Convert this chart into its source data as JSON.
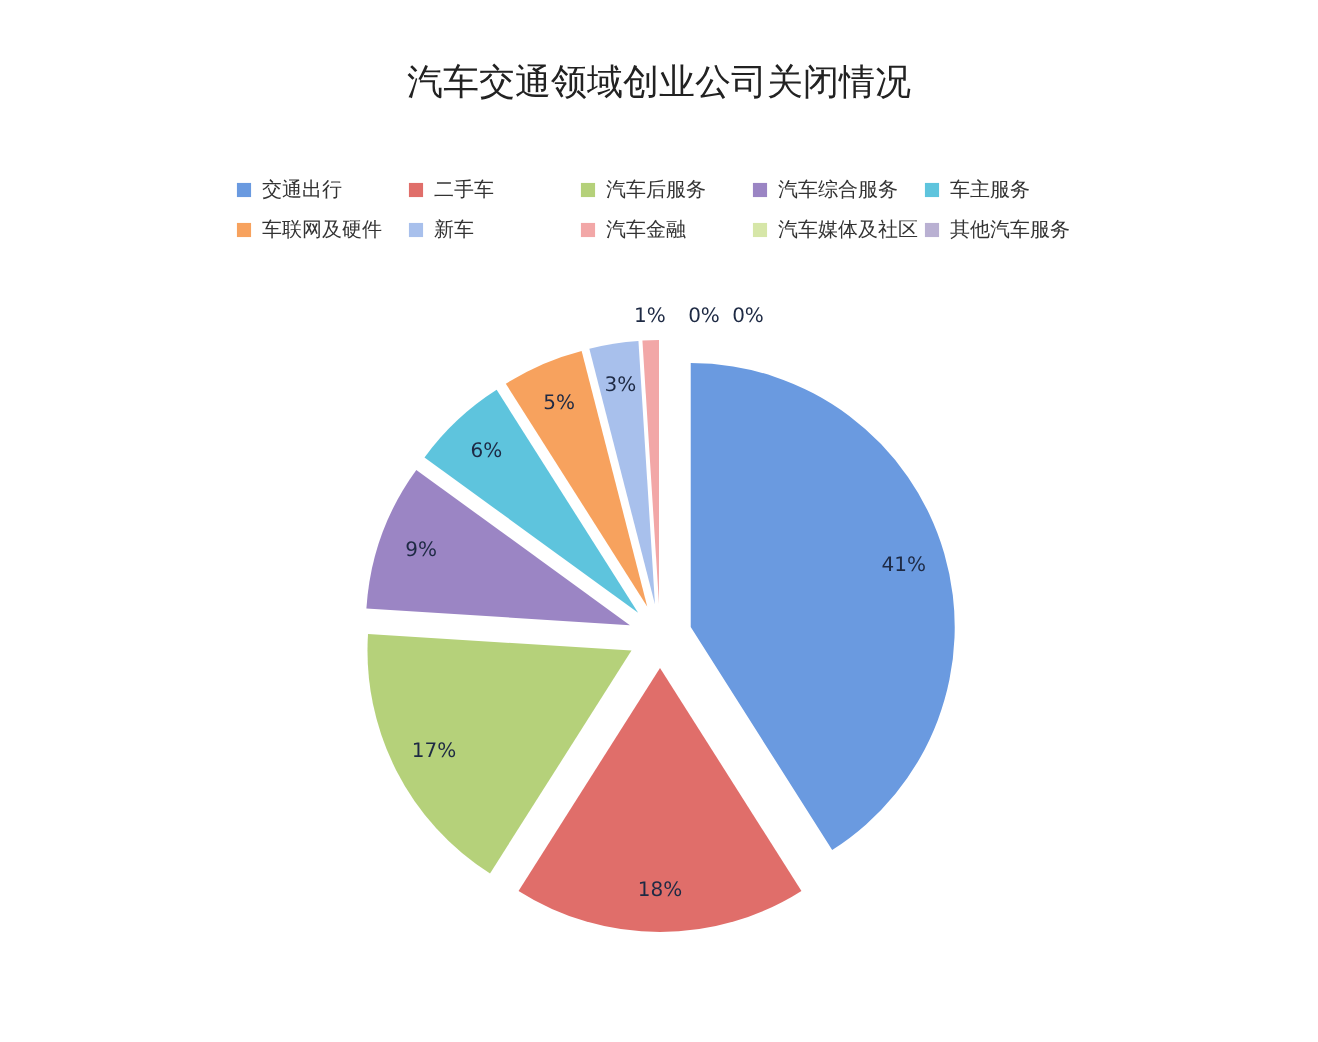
{
  "chart_data": {
    "type": "pie",
    "title": "汽车交通领域创业公司关闭情况",
    "categories": [
      "交通出行",
      "二手车",
      "汽车后服务",
      "汽车综合服务",
      "车主服务",
      "车联网及硬件",
      "新车",
      "汽车金融",
      "汽车媒体及社区",
      "其他汽车服务"
    ],
    "values": [
      41,
      18,
      17,
      9,
      6,
      5,
      3,
      1,
      0,
      0
    ],
    "colors": [
      "#6a9ae0",
      "#e06e6a",
      "#b5d17a",
      "#9b85c4",
      "#5ec4dd",
      "#f7a25e",
      "#a8c0ec",
      "#f2a7a7",
      "#d6e6a8",
      "#b9b0d2"
    ],
    "value_labels": [
      "41%",
      "18%",
      "17%",
      "9%",
      "6%",
      "5%",
      "3%",
      "1%",
      "0%",
      "0%"
    ],
    "legend": "top"
  }
}
